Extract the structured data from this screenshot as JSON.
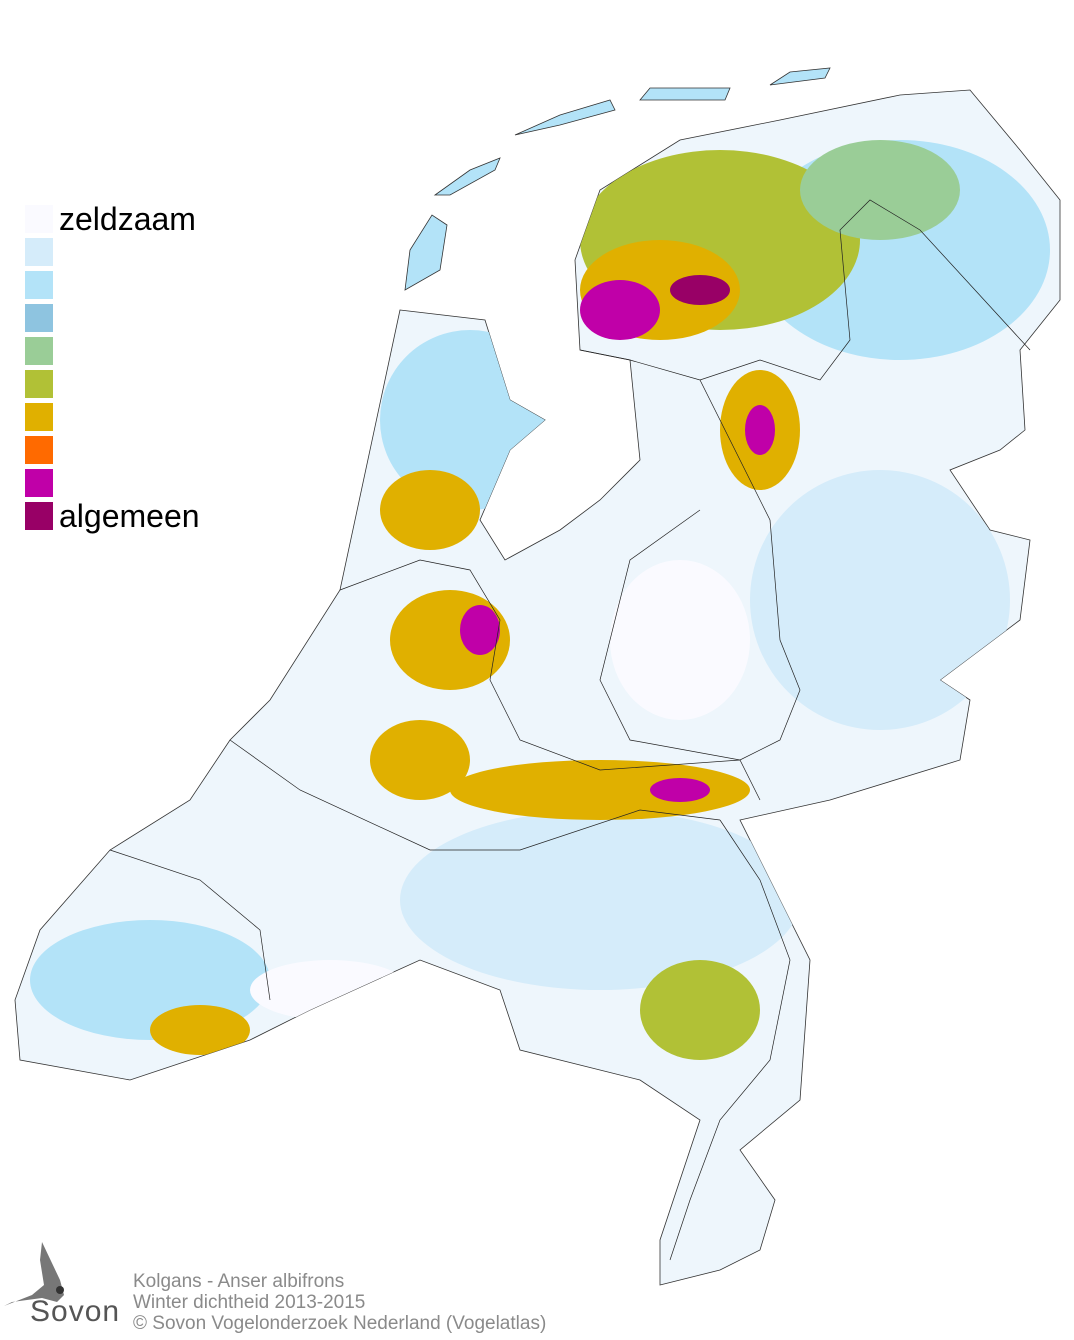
{
  "legend": {
    "label_low": "zeldzaam",
    "label_high": "algemeen",
    "colors": [
      "#fafaff",
      "#d5ecfa",
      "#b3e3f8",
      "#8ec4e0",
      "#9acd97",
      "#b1c136",
      "#e0b000",
      "#ff6a00",
      "#c000a8",
      "#980066"
    ]
  },
  "footer": {
    "species": "Kolgans - Anser albifrons",
    "subtitle": "Winter dichtheid 2013-2015",
    "copyright": "© Sovon Vogelonderzoek Nederland (Vogelatlas)"
  },
  "logo": {
    "text": "Sovon"
  }
}
